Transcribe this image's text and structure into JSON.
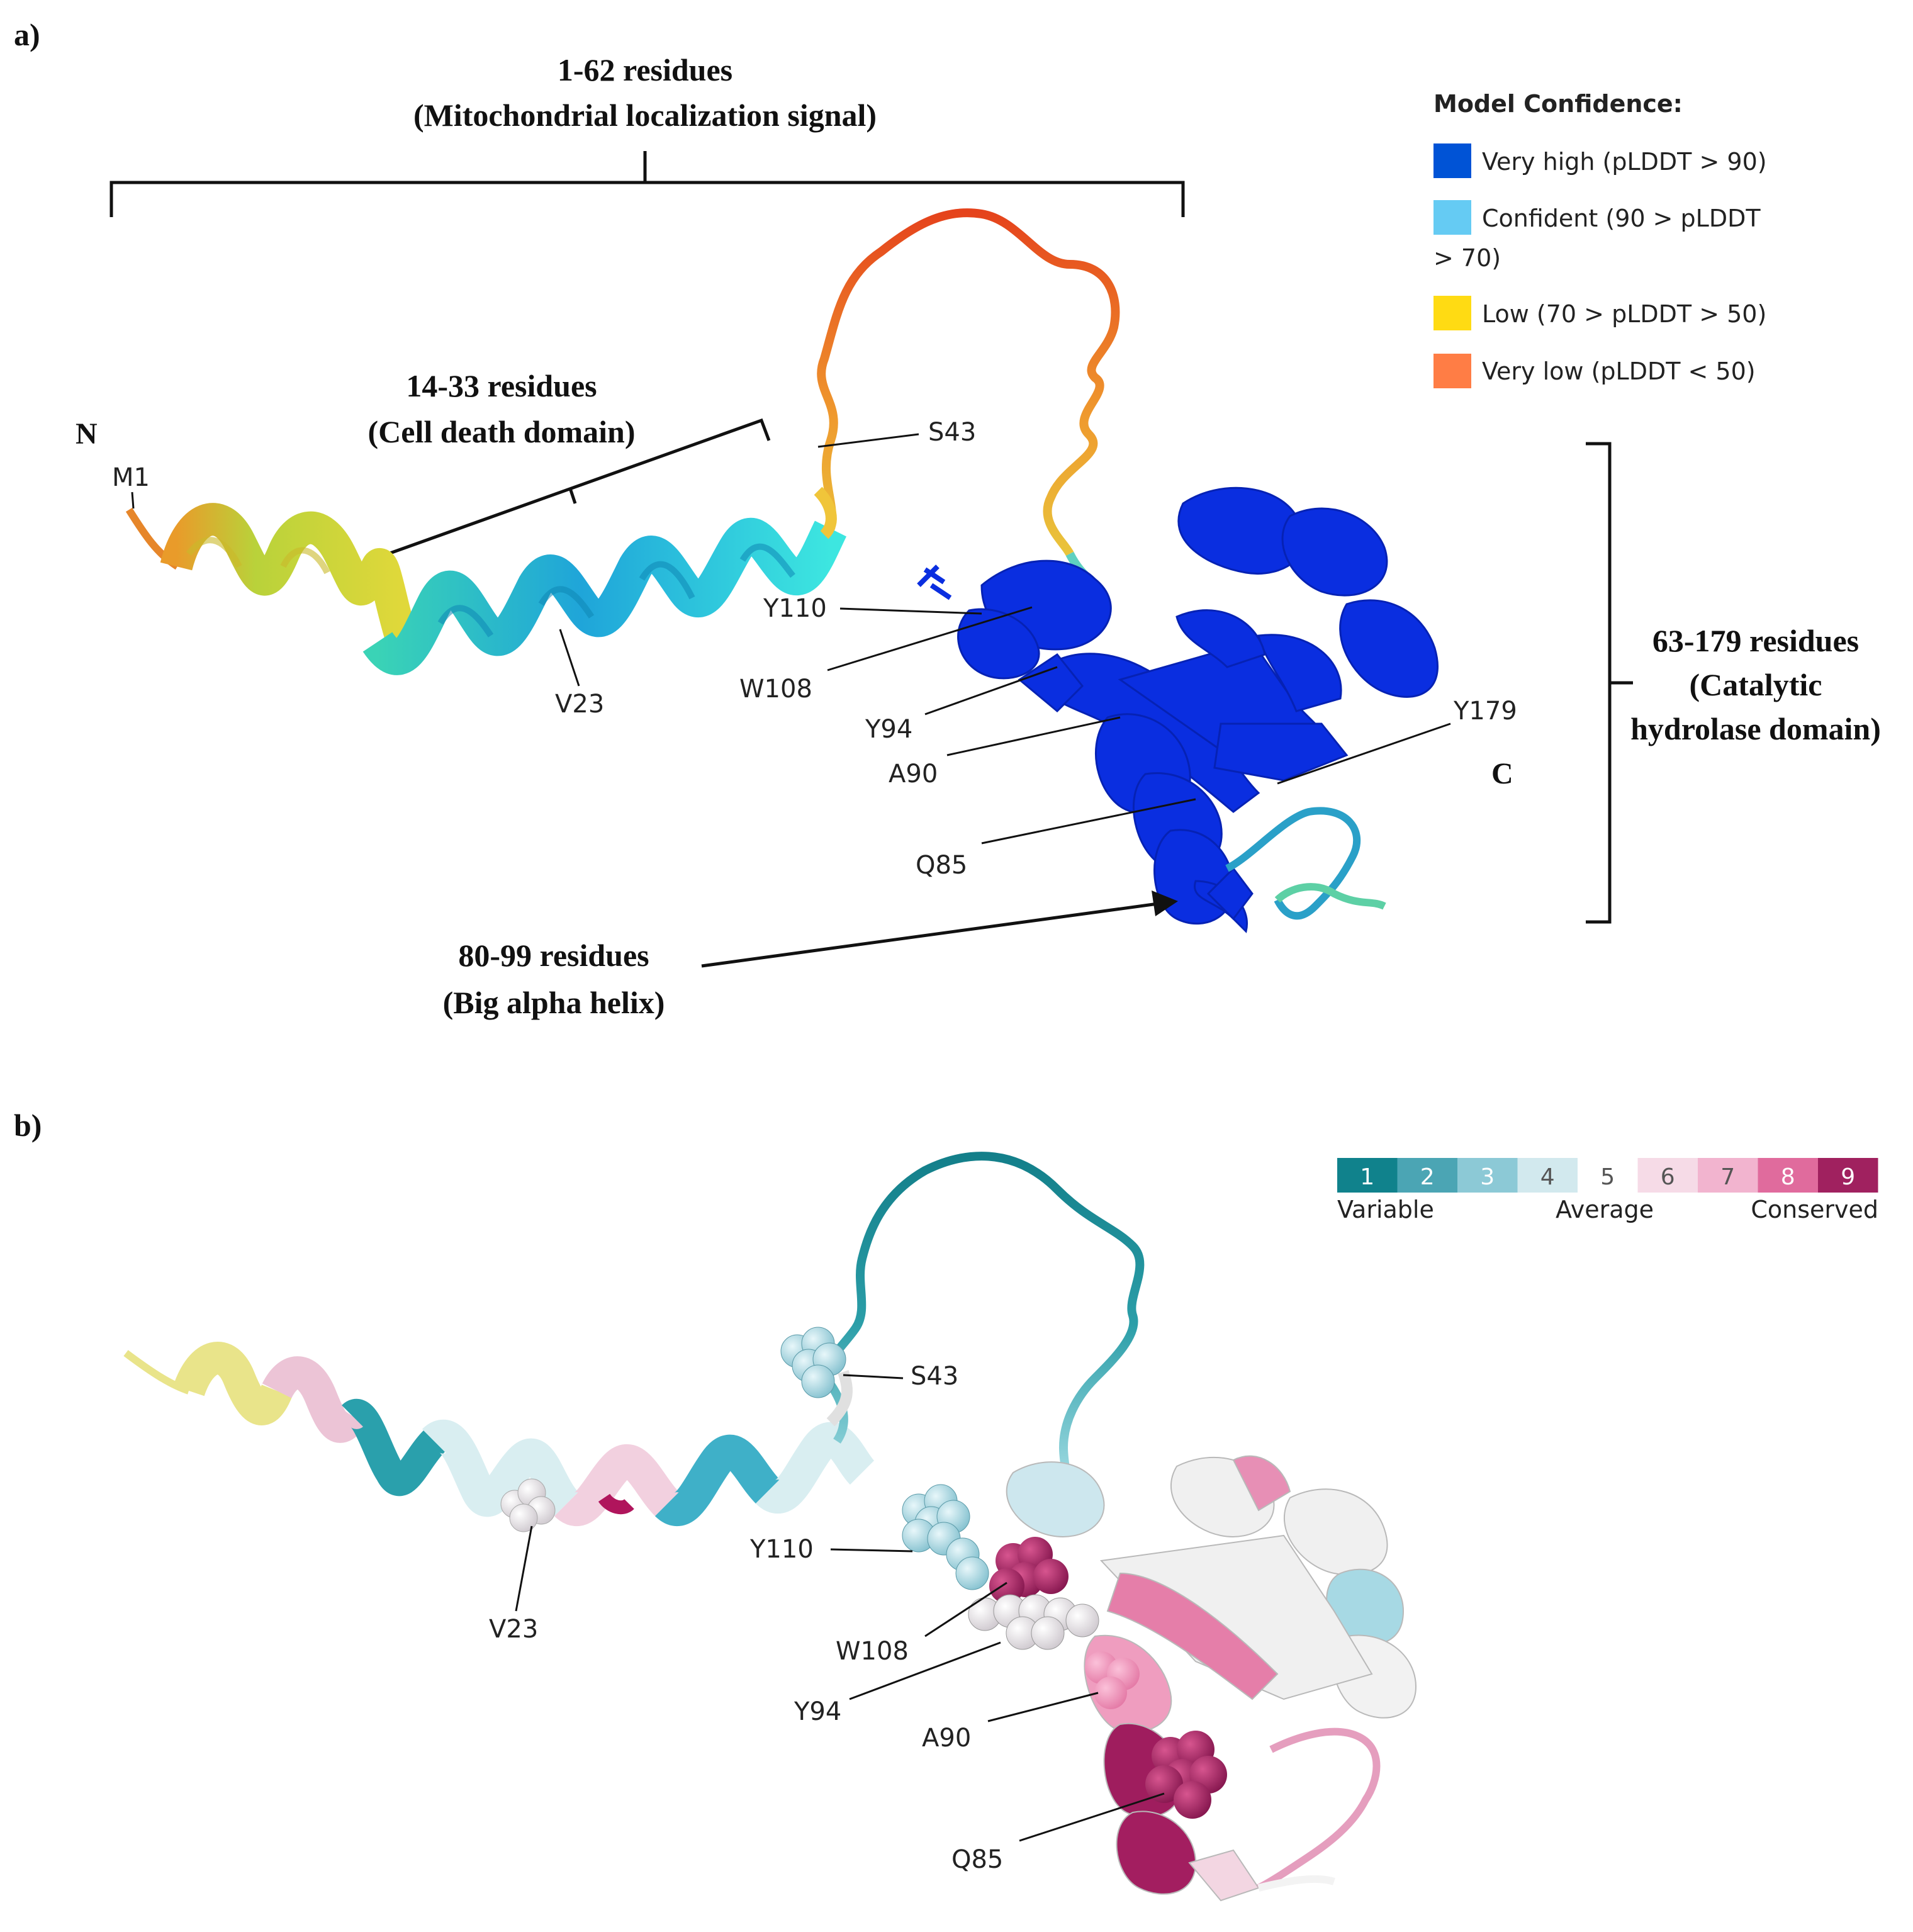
{
  "panel_a": {
    "label": "a)",
    "msl_line1": "1-62 residues",
    "msl_line2": "(Mitochondrial localization signal)",
    "cdd_line1": "14-33 residues",
    "cdd_line2": "(Cell death domain)",
    "cat_line1": "63-179 residues",
    "cat_line2": "(Catalytic",
    "cat_line3": "hydrolase domain)",
    "helix_line1": "80-99 residues",
    "helix_line2": "(Big alpha helix)",
    "n_term": "N",
    "c_term": "C",
    "residues": {
      "m1": "M1",
      "s43": "S43",
      "v23": "V23",
      "y110": "Y110",
      "w108": "W108",
      "y94": "Y94",
      "a90": "A90",
      "y179": "Y179",
      "q85": "Q85"
    },
    "legend": {
      "title": "Model Confidence:",
      "very_high": "Very high (pLDDT > 90)",
      "confident_1": "Confident (90 > pLDDT",
      "confident_2": "> 70)",
      "low": "Low (70 > pLDDT > 50)",
      "very_low": "Very low (pLDDT < 50)"
    },
    "colors": {
      "very_high": "#0053d6",
      "confident": "#65cbf3",
      "low": "#ffdb13",
      "very_low": "#ff7d45"
    }
  },
  "panel_b": {
    "label": "b)",
    "residues": {
      "s43": "S43",
      "y110": "Y110",
      "v23": "V23",
      "w108": "W108",
      "y94": "Y94",
      "a90": "A90",
      "q85": "Q85"
    },
    "scale": {
      "values": [
        "1",
        "2",
        "3",
        "4",
        "5",
        "6",
        "7",
        "8",
        "9"
      ],
      "colors": [
        "#10828c",
        "#4ba5b4",
        "#8cc9d6",
        "#d2e9ee",
        "#ffffff",
        "#f6dbe7",
        "#f2b4cf",
        "#e06b9d",
        "#a0215f"
      ],
      "variable": "Variable",
      "average": "Average",
      "conserved": "Conserved"
    }
  }
}
